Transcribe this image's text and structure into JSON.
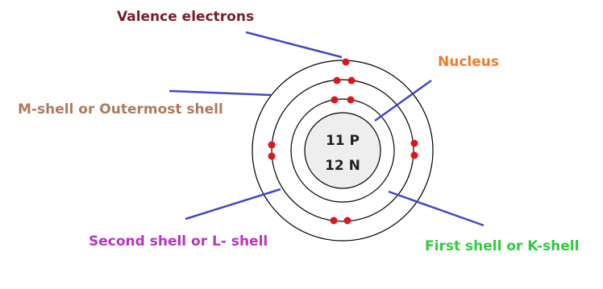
{
  "labels": {
    "valence": "Valence electrons",
    "nucleus": "Nucleus",
    "m_shell": "M-shell or Outermost shell",
    "second_shell": "Second shell or L- shell",
    "first_shell": "First shell or K-shell"
  },
  "nucleus": {
    "protons": "11 P",
    "neutrons": "12 N"
  }
}
